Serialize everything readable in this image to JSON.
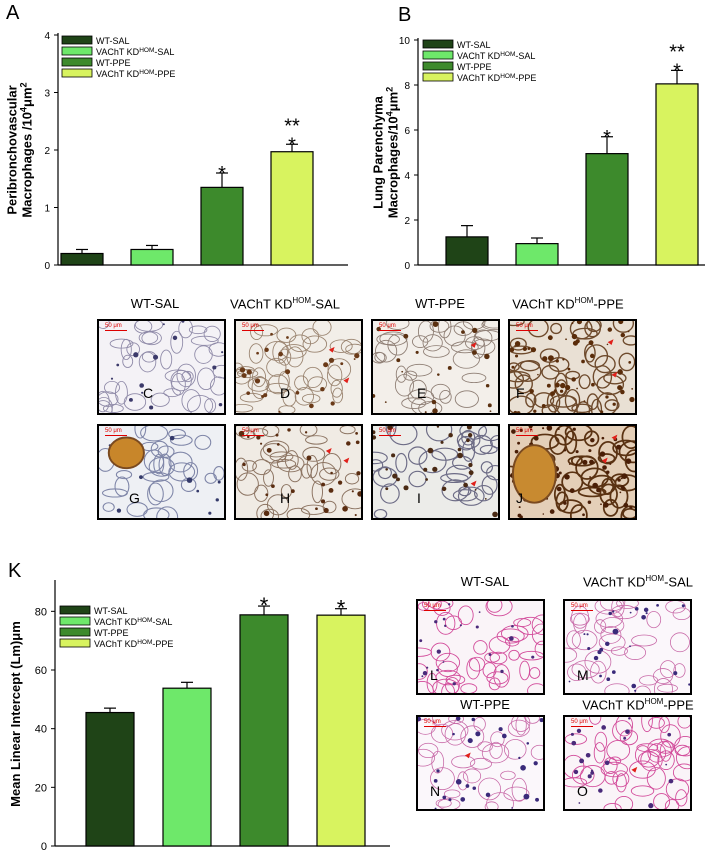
{
  "panels": {
    "A": "A",
    "B": "B",
    "K": "K"
  },
  "legend": [
    "WT-SAL",
    "VAChT KD^HOM-SAL",
    "WT-PPE",
    "VAChT KD^HOM-PPE"
  ],
  "colors": [
    "#1f4417",
    "#6ee86a",
    "#3d8a2c",
    "#d8f35f"
  ],
  "chart_data": [
    {
      "type": "bar",
      "categories": [
        "WT-SAL",
        "VAChT KDHOM-SAL",
        "WT-PPE",
        "VAChT KDHOM-PPE"
      ],
      "values": [
        0.2,
        0.27,
        1.35,
        1.97
      ],
      "errors": [
        0.07,
        0.07,
        0.25,
        0.13
      ],
      "annotations": [
        "",
        "",
        "*",
        "**\n*"
      ],
      "ylabel": "Peribronchovascular Macrophages /10^4 μm^2",
      "ylim": [
        0,
        4
      ],
      "yticks": [
        0,
        1,
        2,
        3,
        4
      ]
    },
    {
      "type": "bar",
      "categories": [
        "WT-SAL",
        "VAChT KDHOM-SAL",
        "WT-PPE",
        "VAChT KDHOM-PPE"
      ],
      "values": [
        1.25,
        0.95,
        4.95,
        8.05
      ],
      "errors": [
        0.5,
        0.25,
        0.75,
        0.6
      ],
      "annotations": [
        "",
        "",
        "*",
        "**\n*"
      ],
      "ylabel": "Lung Parenchyma Macrophages/10^4 μm^2",
      "ylim": [
        0,
        10
      ],
      "yticks": [
        0,
        2,
        4,
        6,
        8,
        10
      ]
    },
    {
      "type": "bar",
      "categories": [
        "WT-SAL",
        "VAChT KDHOM-SAL",
        "WT-PPE",
        "VAChT KDHOM-PPE"
      ],
      "values": [
        45.5,
        53.8,
        78.8,
        78.7
      ],
      "errors": [
        1.5,
        2.0,
        3.0,
        2.2
      ],
      "annotations": [
        "",
        "",
        "*",
        "*"
      ],
      "ylabel": "Mean Linear Intercept (Lm) μm",
      "ylim": [
        0,
        90
      ],
      "yticks": [
        0,
        20,
        40,
        60,
        80
      ]
    }
  ],
  "micrographs": {
    "top_headers": [
      "WT-SAL",
      "VAChT KD",
      "WT-PPE",
      "VAChT KD"
    ],
    "top_header_suffix": [
      "",
      "-SAL",
      "",
      "-PPE"
    ],
    "sup": "HOM",
    "letters": [
      "C",
      "D",
      "E",
      "F",
      "G",
      "H",
      "I",
      "J"
    ],
    "scale": "50 μm",
    "bottom_headers": [
      "WT-SAL",
      "VAChT KD",
      "WT-PPE",
      "VAChT KD"
    ],
    "bottom_header_suffix": [
      "",
      "-SAL",
      "",
      "-PPE"
    ],
    "bottom_letters": [
      "L",
      "M",
      "N",
      "O"
    ]
  }
}
